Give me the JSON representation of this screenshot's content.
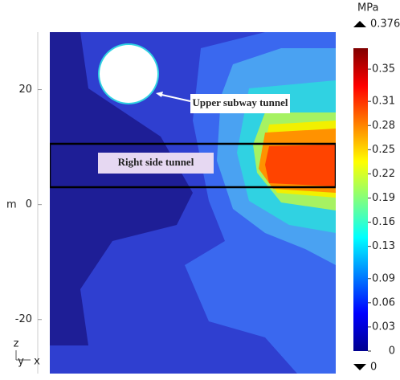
{
  "chart_data": {
    "type": "contour",
    "y_label": "m",
    "ylim": [
      -29.4,
      30
    ],
    "yticks": [
      -20,
      0,
      20
    ],
    "colorbar_unit": "MPa",
    "clim": [
      0,
      0.376
    ],
    "colorbar_ticks": [
      0,
      0.03,
      0.06,
      0.09,
      0.13,
      0.16,
      0.19,
      0.22,
      0.25,
      0.28,
      0.31,
      0.35
    ],
    "colormap": [
      "#00008f",
      "#0000ff",
      "#0080ff",
      "#00ffff",
      "#80ff80",
      "#ffff00",
      "#ff8000",
      "#ff0000",
      "#800000"
    ],
    "annotations": [
      "Upper subway tunnel",
      "Right side tunnel"
    ],
    "axes_triad": [
      "z",
      "y",
      "x"
    ]
  }
}
